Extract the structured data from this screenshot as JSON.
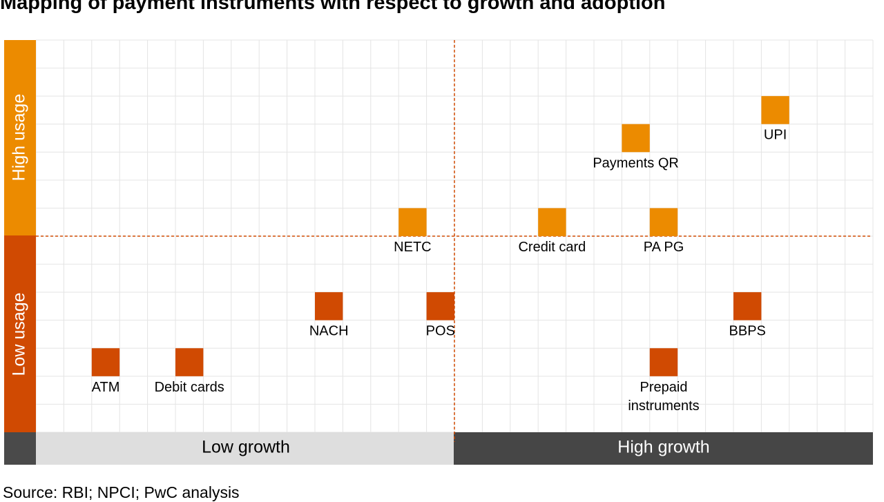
{
  "title": "Mapping of payment instruments with respect to growth and adoption",
  "source": "Source: RBI; NPCI; PwC analysis",
  "colors": {
    "high_usage": "#ec8b00",
    "low_usage": "#d04a02",
    "high_growth_band": "#464646",
    "low_growth_band": "#dedede",
    "grid": "#e4e4e4",
    "divider": "#d04a02"
  },
  "chart_data": {
    "type": "scatter",
    "title": "Mapping of payment instruments with respect to growth and adoption",
    "x_axis": {
      "label_left": "Low growth",
      "label_right": "High growth",
      "range": [
        0,
        30
      ],
      "divider": 15
    },
    "y_axis": {
      "label_top": "High usage",
      "label_bottom": "Low usage",
      "range": [
        0,
        14
      ],
      "divider": 7
    },
    "grid": true,
    "points": [
      {
        "label": "UPI",
        "x": 26,
        "y": 12,
        "group": "high_usage"
      },
      {
        "label": "Payments QR",
        "x": 21,
        "y": 11,
        "group": "high_usage"
      },
      {
        "label": "NETC",
        "x": 13,
        "y": 8,
        "group": "high_usage"
      },
      {
        "label": "Credit card",
        "x": 18,
        "y": 8,
        "group": "high_usage"
      },
      {
        "label": "PA PG",
        "x": 22,
        "y": 8,
        "group": "high_usage"
      },
      {
        "label": "NACH",
        "x": 10,
        "y": 5,
        "group": "low_usage"
      },
      {
        "label": "POS",
        "x": 14,
        "y": 5,
        "group": "low_usage"
      },
      {
        "label": "BBPS",
        "x": 25,
        "y": 5,
        "group": "low_usage"
      },
      {
        "label": "ATM",
        "x": 2,
        "y": 3,
        "group": "low_usage"
      },
      {
        "label": "Debit cards",
        "x": 5,
        "y": 3,
        "group": "low_usage"
      },
      {
        "label": "Prepaid\ninstruments",
        "x": 22,
        "y": 3,
        "group": "low_usage"
      }
    ]
  }
}
